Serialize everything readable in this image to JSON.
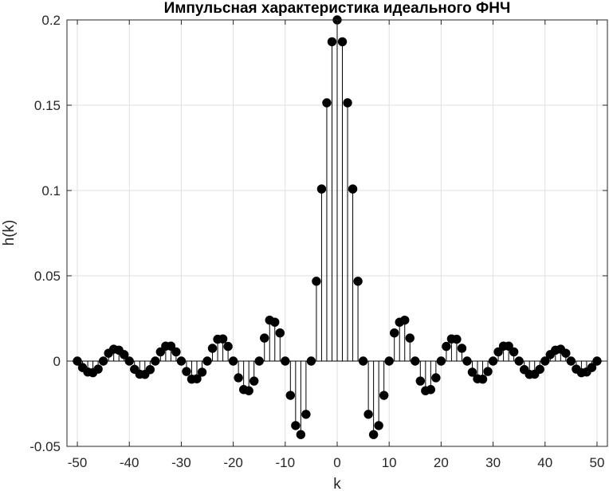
{
  "chart_data": {
    "type": "stem",
    "title": "Импульсная характеристика идеального ФНЧ",
    "xlabel": "k",
    "ylabel": "h(k)",
    "xlim": [
      -52,
      52
    ],
    "ylim": [
      -0.05,
      0.2
    ],
    "xticks": [
      -50,
      -40,
      -30,
      -20,
      -10,
      0,
      10,
      20,
      30,
      40,
      50
    ],
    "yticks": [
      -0.05,
      0,
      0.05,
      0.1,
      0.15,
      0.2
    ],
    "xtick_labels": [
      "-50",
      "-40",
      "-30",
      "-20",
      "-10",
      "0",
      "10",
      "20",
      "30",
      "40",
      "50"
    ],
    "ytick_labels": [
      "-0.05",
      "0",
      "0.05",
      "0.1",
      "0.15",
      "0.2"
    ],
    "grid": true,
    "marker_color": "#000000",
    "grid_color": "#dfdfdf",
    "series": [
      {
        "x": [
          -50,
          -49,
          -48,
          -47,
          -46,
          -45,
          -44,
          -43,
          -42,
          -41,
          -40,
          -39,
          -38,
          -37,
          -36,
          -35,
          -34,
          -33,
          -32,
          -31,
          -30,
          -29,
          -28,
          -27,
          -26,
          -25,
          -24,
          -23,
          -22,
          -21,
          -20,
          -19,
          -18,
          -17,
          -16,
          -15,
          -14,
          -13,
          -12,
          -11,
          -10,
          -9,
          -8,
          -7,
          -6,
          -5,
          -4,
          -3,
          -2,
          -1,
          0,
          1,
          2,
          3,
          4,
          5,
          6,
          7,
          8,
          9,
          10,
          11,
          12,
          13,
          14,
          15,
          16,
          17,
          18,
          19,
          20,
          21,
          22,
          23,
          24,
          25,
          26,
          27,
          28,
          29,
          30,
          31,
          32,
          33,
          34,
          35,
          36,
          37,
          38,
          39,
          40,
          41,
          42,
          43,
          44,
          45,
          46,
          47,
          48,
          49,
          50
        ],
        "values": [
          0,
          -0.0038,
          -0.0064,
          -0.0068,
          -0.0047,
          0,
          0.0046,
          0.007,
          0.0064,
          0.0038,
          0,
          -0.0048,
          -0.0077,
          -0.0078,
          -0.005,
          0,
          0.0054,
          0.0088,
          0.0088,
          0.0054,
          0,
          -0.0061,
          -0.0106,
          -0.0104,
          -0.0065,
          0,
          0.0075,
          0.0128,
          0.013,
          0.0086,
          0,
          -0.0098,
          -0.0167,
          -0.0174,
          -0.0117,
          0,
          0.0135,
          0.024,
          0.0228,
          0.0165,
          0,
          -0.0201,
          -0.0378,
          -0.0431,
          -0.0312,
          0,
          0.0468,
          0.1009,
          0.1514,
          0.1872,
          0.2,
          0.1872,
          0.1514,
          0.1009,
          0.0468,
          0,
          -0.0312,
          -0.0431,
          -0.0378,
          -0.0201,
          0,
          0.0165,
          0.0228,
          0.024,
          0.0135,
          0,
          -0.0117,
          -0.0174,
          -0.0167,
          -0.0098,
          0,
          0.0086,
          0.013,
          0.0128,
          0.0075,
          0,
          -0.0065,
          -0.0104,
          -0.0106,
          -0.0061,
          0,
          0.0054,
          0.0088,
          0.0088,
          0.0054,
          0,
          -0.005,
          -0.0078,
          -0.0077,
          -0.0048,
          0,
          0.0038,
          0.0064,
          0.007,
          0.0046,
          0,
          -0.0047,
          -0.0068,
          -0.0064,
          -0.0038,
          0
        ]
      }
    ]
  }
}
